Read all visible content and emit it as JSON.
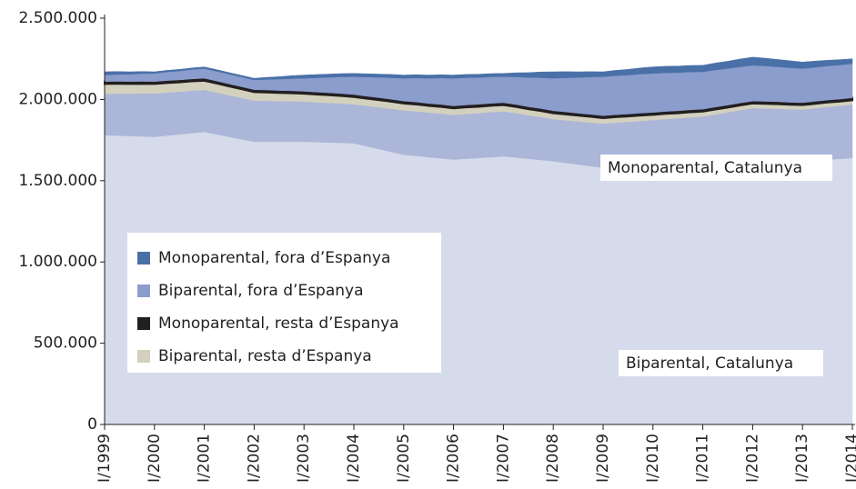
{
  "chart_data": {
    "type": "stacked_area",
    "categories": [
      "I/1999",
      null,
      null,
      null,
      "I/2000",
      null,
      null,
      null,
      "I/2001",
      null,
      null,
      null,
      "I/2002",
      null,
      null,
      null,
      "I/2003",
      null,
      null,
      null,
      "I/2004",
      null,
      null,
      null,
      "I/2005",
      null,
      null,
      null,
      "I/2006",
      null,
      null,
      null,
      "I/2007",
      null,
      null,
      null,
      "I/2008",
      null,
      null,
      null,
      "I/2009",
      null,
      null,
      null,
      "I/2010",
      null,
      null,
      null,
      "I/2011",
      null,
      null,
      null,
      "I/2012",
      null,
      null,
      null,
      "I/2013",
      null,
      null,
      null,
      "I/2014"
    ],
    "series": [
      {
        "name": "Biparental, Catalunya",
        "color": "#d5dbea",
        "values": [
          1780000,
          1778000,
          1775000,
          1773000,
          1770000,
          1778000,
          1785000,
          1793000,
          1800000,
          1785000,
          1770000,
          1755000,
          1740000,
          1740000,
          1740000,
          1740000,
          1740000,
          1738000,
          1735000,
          1733000,
          1730000,
          1713000,
          1695000,
          1678000,
          1660000,
          1653000,
          1645000,
          1638000,
          1630000,
          1635000,
          1640000,
          1645000,
          1650000,
          1643000,
          1635000,
          1628000,
          1620000,
          1610000,
          1600000,
          1590000,
          1580000,
          1583000,
          1585000,
          1588000,
          1590000,
          1593000,
          1595000,
          1598000,
          1600000,
          1610000,
          1620000,
          1630000,
          1640000,
          1635000,
          1630000,
          1625000,
          1620000,
          1625000,
          1630000,
          1635000,
          1640000
        ]
      },
      {
        "name": "Monoparental, Catalunya",
        "color": "#abb6d8",
        "values": [
          255000,
          258000,
          261000,
          264000,
          267000,
          265000,
          263000,
          261000,
          259000,
          258000,
          256000,
          255000,
          253000,
          252000,
          250000,
          249000,
          247000,
          245000,
          244000,
          242000,
          240000,
          248000,
          257000,
          265000,
          273000,
          274000,
          274000,
          275000,
          275000,
          276000,
          276000,
          277000,
          277000,
          273000,
          268000,
          264000,
          259000,
          262000,
          265000,
          268000,
          271000,
          274000,
          277000,
          280000,
          283000,
          286000,
          289000,
          292000,
          295000,
          298000,
          301000,
          304000,
          307000,
          310000,
          313000,
          315000,
          318000,
          321000,
          324000,
          326000,
          329000
        ]
      },
      {
        "name": "Biparental, resta d’Espanya",
        "color": "#d3d1bd",
        "values": [
          60000,
          60000,
          59000,
          59000,
          58000,
          58000,
          57000,
          57000,
          56000,
          55000,
          54000,
          53000,
          52000,
          51000,
          50000,
          49000,
          48000,
          47000,
          47000,
          46000,
          45000,
          44000,
          44000,
          43000,
          42000,
          42000,
          41000,
          41000,
          40000,
          40000,
          39000,
          39000,
          38000,
          38000,
          37000,
          37000,
          36000,
          36000,
          35000,
          35000,
          34000,
          34000,
          33000,
          33000,
          32000,
          32000,
          31000,
          31000,
          30000,
          30000,
          29000,
          29000,
          28000,
          28000,
          28000,
          27000,
          27000,
          27000,
          27000,
          26000,
          26000
        ]
      },
      {
        "name": "Monoparental, resta d’Espanya",
        "color": "#231f20",
        "values": [
          15000,
          15000,
          15000,
          15000,
          15000,
          15000,
          15000,
          15000,
          15000,
          15000,
          15000,
          15000,
          15000,
          15000,
          15000,
          15000,
          15000,
          15000,
          15000,
          15000,
          15000,
          15000,
          15000,
          15000,
          15000,
          15000,
          15000,
          15000,
          15000,
          15000,
          15000,
          15000,
          15000,
          15000,
          15000,
          15000,
          15000,
          15000,
          15000,
          15000,
          15000,
          15000,
          15000,
          15000,
          15000,
          15000,
          15000,
          15000,
          15000,
          15000,
          15000,
          15000,
          15000,
          15000,
          15000,
          15000,
          15000,
          15000,
          15000,
          15000,
          15000
        ]
      },
      {
        "name": "Biparental, fora d’Espanya",
        "color": "#8b9dcc",
        "values": [
          40000,
          43000,
          45000,
          48000,
          50000,
          53000,
          55000,
          58000,
          60000,
          60000,
          60000,
          60000,
          60000,
          65000,
          70000,
          75000,
          80000,
          88000,
          95000,
          103000,
          110000,
          118000,
          125000,
          133000,
          140000,
          148000,
          155000,
          163000,
          170000,
          168000,
          165000,
          163000,
          160000,
          170000,
          180000,
          190000,
          200000,
          210000,
          220000,
          230000,
          240000,
          240000,
          240000,
          240000,
          240000,
          238000,
          235000,
          233000,
          230000,
          228000,
          225000,
          223000,
          220000,
          218000,
          215000,
          213000,
          210000,
          210000,
          210000,
          210000,
          210000
        ]
      },
      {
        "name": "Monoparental, fora d’Espanya",
        "color": "#4a70a8",
        "values": [
          20000,
          18000,
          15000,
          13000,
          10000,
          10000,
          10000,
          10000,
          10000,
          10000,
          10000,
          10000,
          10000,
          13000,
          15000,
          18000,
          20000,
          20000,
          20000,
          20000,
          20000,
          20000,
          20000,
          20000,
          20000,
          20000,
          20000,
          20000,
          20000,
          20000,
          20000,
          20000,
          20000,
          25000,
          30000,
          35000,
          40000,
          38000,
          35000,
          33000,
          30000,
          33000,
          35000,
          38000,
          40000,
          40000,
          40000,
          40000,
          40000,
          43000,
          45000,
          48000,
          50000,
          48000,
          45000,
          43000,
          40000,
          38000,
          35000,
          33000,
          30000
        ]
      }
    ],
    "ylim": [
      0,
      2500000
    ],
    "yticks": [
      0,
      {
        "value": 500000,
        "label": "500.000"
      },
      {
        "value": 1000000,
        "label": "1.000.000"
      },
      {
        "value": 1500000,
        "label": "1.500.000"
      },
      {
        "value": 2000000,
        "label": "2.000.000"
      },
      {
        "value": 2500000,
        "label": "2.500.000"
      }
    ]
  }
}
